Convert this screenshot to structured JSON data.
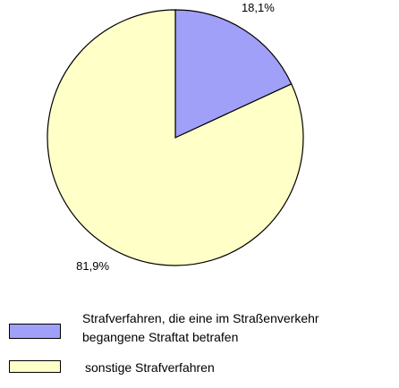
{
  "chart_data": {
    "type": "pie",
    "categories": [
      "Strafverfahren, die eine im Straßenverkehr begangene Straftat betrafen",
      "sonstige Strafverfahren"
    ],
    "values": [
      18.1,
      81.9
    ],
    "value_labels": [
      "18,1%",
      "81,9%"
    ],
    "colors": [
      "#a0a0f8",
      "#ffffc8"
    ],
    "legend": "bottom"
  }
}
